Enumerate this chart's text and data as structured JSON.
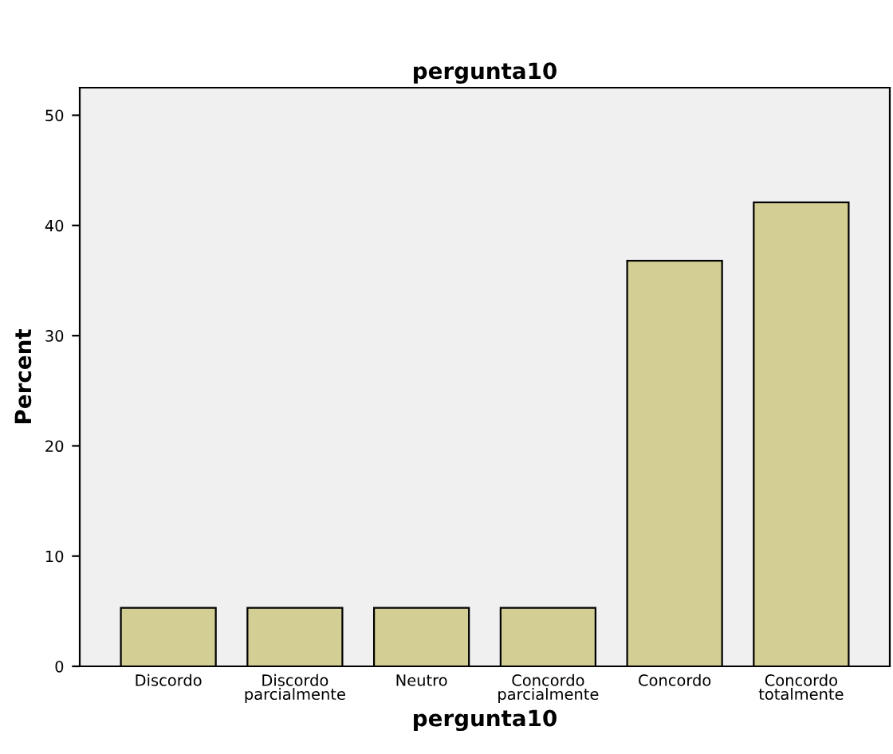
{
  "chart_data": {
    "type": "bar",
    "title": "pergunta10",
    "xlabel": "pergunta10",
    "ylabel": "Percent",
    "categories": [
      "Discordo",
      "Discordo\nparcialmente",
      "Neutro",
      "Concordo\nparcialmente",
      "Concordo",
      "Concordo\ntotalmente"
    ],
    "values": [
      5.3,
      5.3,
      5.3,
      5.3,
      36.8,
      42.1
    ],
    "color": "#d3ce93",
    "ylim": [
      0,
      52.5
    ],
    "yticks": [
      0,
      10,
      20,
      30,
      40,
      50
    ],
    "grid": false
  }
}
